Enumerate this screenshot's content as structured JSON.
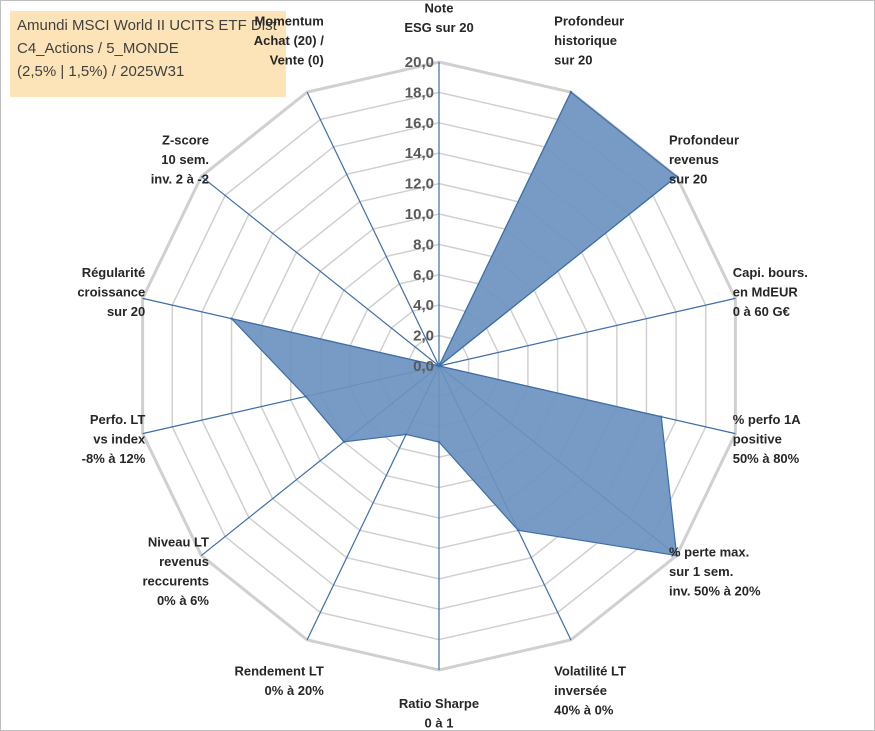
{
  "chart_data": {
    "type": "radar",
    "title": [
      "Amundi MSCI World II UCITS ETF Dist",
      "C4_Actions / 5_MONDE",
      "(2,5% | 1,5%) / 2025W31"
    ],
    "r_range": [
      0,
      20
    ],
    "ticks": [
      "0,0",
      "2,0",
      "4,0",
      "6,0",
      "8,0",
      "10,0",
      "12,0",
      "14,0",
      "16,0",
      "18,0",
      "20,0"
    ],
    "categories": [
      [
        "Note",
        "ESG sur 20"
      ],
      [
        "Profondeur",
        "historique",
        "sur 20"
      ],
      [
        "Profondeur",
        "revenus",
        "sur 20"
      ],
      [
        "Capi. bours.",
        "en MdEUR",
        "0 à 60 G€"
      ],
      [
        "% perfo 1A",
        "positive",
        "50% à 80%"
      ],
      [
        "% perte max.",
        "sur 1 sem.",
        "inv. 50% à 20%"
      ],
      [
        "Volatilité LT",
        "inversée",
        "40% à 0%"
      ],
      [
        "Ratio Sharpe",
        "0 à 1"
      ],
      [
        "Rendement LT",
        "0% à 20%"
      ],
      [
        "Niveau LT",
        "revenus",
        "reccurents",
        "0% à 6%"
      ],
      [
        "Perfo. LT",
        "vs index",
        "-8% à 12%"
      ],
      [
        "Régularité",
        "croissance",
        "sur 20"
      ],
      [
        "Z-score",
        "10 sem.",
        "inv. 2 à -2"
      ],
      [
        "Momentum",
        "Achat (20) /",
        "Vente (0)"
      ]
    ],
    "series": [
      {
        "values": [
          0,
          20,
          20,
          0,
          15,
          20,
          12,
          5,
          5,
          8,
          9,
          14,
          0,
          0
        ],
        "fill": "#6b93bf",
        "stroke": "#3c6ea8"
      }
    ],
    "grid": true,
    "legend": "none"
  },
  "colors": {
    "grid": "#d0d0d0",
    "spoke": "#3c6ea8",
    "title_bg": "#fce4b8"
  }
}
